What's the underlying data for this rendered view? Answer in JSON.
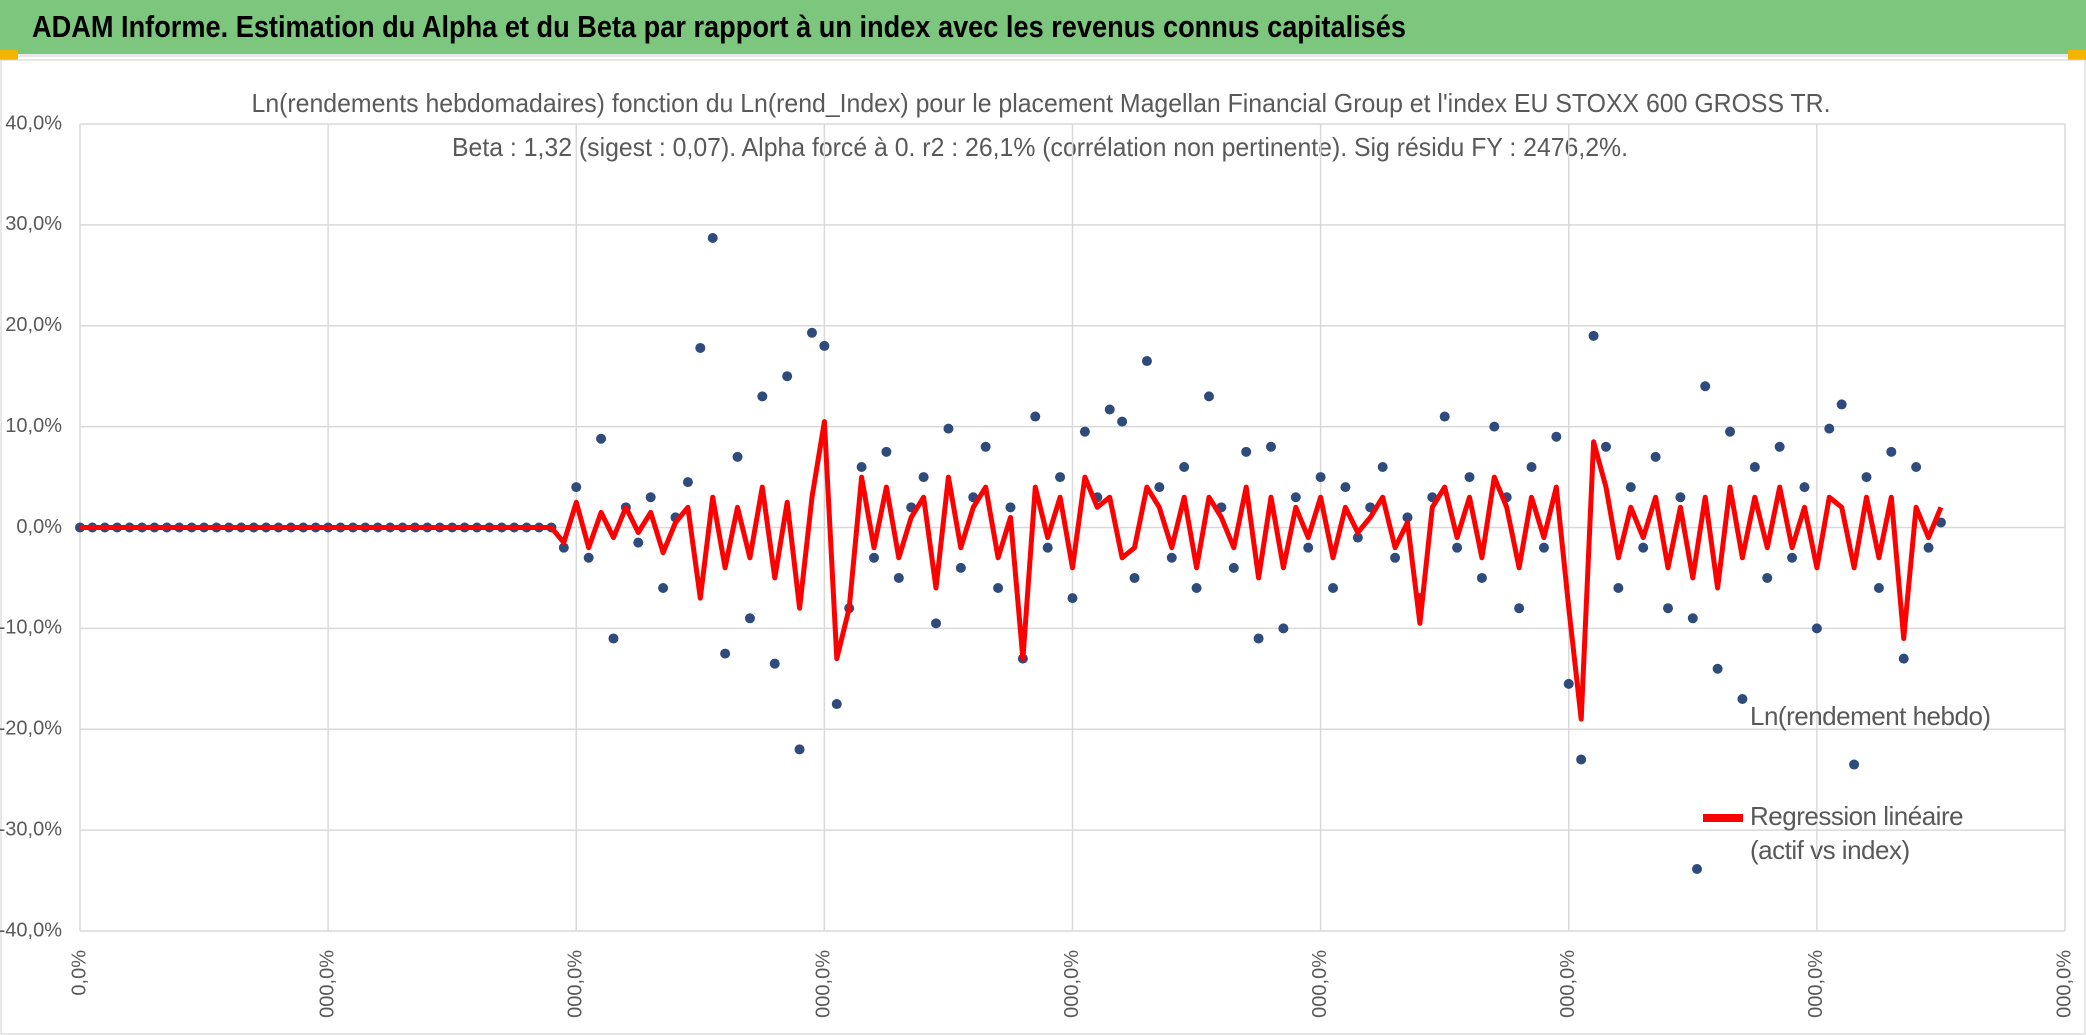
{
  "header": {
    "title": "ADAM Informe. Estimation du Alpha et du Beta par rapport à un index avec les revenus connus capitalisés"
  },
  "chart_data": {
    "type": "scatter",
    "title": "Ln(rendements hebdomadaires) fonction du Ln(rend_Index) pour le placement Magellan Financial Group  et l'index EU STOXX 600 GROSS TR.",
    "subtitle": "Beta : 1,32 (sigest : 0,07). Alpha forcé à 0. r2 : 26,1% (corrélation non pertinente). Sig résidu FY : 2476,2%.",
    "x": [
      0,
      50,
      100,
      150,
      200,
      250,
      300,
      350,
      400,
      450,
      500,
      550,
      600,
      650,
      700,
      750,
      800,
      850,
      900,
      950,
      1000,
      1050,
      1100,
      1150,
      1200,
      1250,
      1300,
      1350,
      1400,
      1450,
      1500,
      1550,
      1600,
      1650,
      1700,
      1750,
      1800,
      1850,
      1900,
      1950,
      2000,
      2050,
      2100,
      2150,
      2200,
      2250,
      2300,
      2350,
      2400,
      2450,
      2500,
      2550,
      2600,
      2650,
      2700,
      2750,
      2800,
      2850,
      2900,
      2950,
      3000,
      3050,
      3100,
      3150,
      3200,
      3250,
      3300,
      3350,
      3400,
      3450,
      3500,
      3550,
      3600,
      3650,
      3700,
      3750,
      3800,
      3850,
      3900,
      3950,
      4000,
      4050,
      4100,
      4150,
      4200,
      4250,
      4300,
      4350,
      4400,
      4450,
      4500,
      4550,
      4600,
      4650,
      4700,
      4750,
      4800,
      4850,
      4900,
      4950,
      5000,
      5050,
      5100,
      5150,
      5200,
      5250,
      5300,
      5350,
      5400,
      5450,
      5500,
      5550,
      5600,
      5650,
      5700,
      5750,
      5800,
      5850,
      5900,
      5950,
      6000,
      6050,
      6100,
      6150,
      6200,
      6250,
      6300,
      6350,
      6400,
      6450,
      6500,
      6550,
      6600,
      6650,
      6700,
      6750,
      6800,
      6850,
      6900,
      6950,
      7000,
      7050,
      7100,
      7150,
      7200,
      7250,
      7300,
      7350,
      7400,
      7450,
      7500
    ],
    "series": [
      {
        "name": "Ln(rendement hebdo)",
        "color": "#2f4b7c",
        "kind": "points",
        "values": [
          0,
          0,
          0,
          0,
          0,
          0,
          0,
          0,
          0,
          0,
          0,
          0,
          0,
          0,
          0,
          0,
          0,
          0,
          0,
          0,
          0,
          0,
          0,
          0,
          0,
          0,
          0,
          0,
          0,
          0,
          0,
          0,
          0,
          0,
          0,
          0,
          0,
          0,
          0,
          -2,
          4,
          -3,
          8.8,
          -11,
          2,
          -1.5,
          3,
          -6,
          1,
          4.5,
          17.8,
          28.7,
          -12.5,
          7,
          -9,
          13,
          -13.5,
          15,
          -22,
          19.3,
          18,
          -17.5,
          -8,
          6,
          -3,
          7.5,
          -5,
          2,
          5,
          -9.5,
          9.8,
          -4,
          3,
          8,
          -6,
          2,
          -13,
          11,
          -2,
          5,
          -7,
          9.5,
          3,
          11.7,
          10.5,
          -5,
          16.5,
          4,
          -3,
          6,
          -6,
          13,
          2,
          -4,
          7.5,
          -11,
          8,
          -10,
          3,
          -2,
          5,
          -6,
          4,
          -1,
          2,
          6,
          -3,
          1,
          -7,
          3,
          11,
          -2,
          5,
          -5,
          10,
          3,
          -8,
          6,
          -2,
          9,
          -15.5,
          -23,
          19,
          8,
          -6,
          4,
          -2,
          7,
          -8,
          3,
          -9,
          14,
          -14,
          9.5,
          -17,
          6,
          -5,
          8,
          -3,
          4,
          -10,
          9.8,
          12.2,
          -23.5,
          5,
          -6,
          7.5,
          -13,
          6,
          -2,
          0.5
        ]
      },
      {
        "name": "Regression linéaire (actif vs index)",
        "color": "#ff0000",
        "kind": "line",
        "values": [
          0,
          0,
          0,
          0,
          0,
          0,
          0,
          0,
          0,
          0,
          0,
          0,
          0,
          0,
          0,
          0,
          0,
          0,
          0,
          0,
          0,
          0,
          0,
          0,
          0,
          0,
          0,
          0,
          0,
          0,
          0,
          0,
          0,
          0,
          0,
          0,
          0,
          0,
          0,
          -1.5,
          2.5,
          -2,
          1.5,
          -1,
          2,
          -0.5,
          1.5,
          -2.5,
          0.5,
          2,
          -7,
          3,
          -4,
          2,
          -3,
          4,
          -5,
          2.5,
          -8,
          3,
          10.5,
          -13,
          -8,
          5,
          -2,
          4,
          -3,
          1,
          3,
          -6,
          5,
          -2,
          2,
          4,
          -3,
          1,
          -13,
          4,
          -1,
          3,
          -4,
          5,
          2,
          3,
          -3,
          -2,
          4,
          2,
          -2,
          3,
          -4,
          3,
          1,
          -2,
          4,
          -5,
          3,
          -4,
          2,
          -1,
          3,
          -3,
          2,
          -0.5,
          1,
          3,
          -2,
          0.5,
          -9.5,
          2,
          4,
          -1,
          3,
          -3,
          5,
          2,
          -4,
          3,
          -1,
          4,
          -8,
          -19,
          8.5,
          4,
          -3,
          2,
          -1,
          3,
          -4,
          2,
          -5,
          3,
          -6,
          4,
          -3,
          3,
          -2,
          4,
          -2,
          2,
          -4,
          3,
          2,
          -4,
          3,
          -3,
          3,
          -11,
          2,
          -1,
          2
        ]
      }
    ],
    "xlim": [
      0,
      8000
    ],
    "xticks": [
      {
        "value": 0,
        "label": "0,0%"
      },
      {
        "value": 1000,
        "label": "000,0%"
      },
      {
        "value": 2000,
        "label": "000,0%"
      },
      {
        "value": 3000,
        "label": "000,0%"
      },
      {
        "value": 4000,
        "label": "000,0%"
      },
      {
        "value": 5000,
        "label": "000,0%"
      },
      {
        "value": 6000,
        "label": "000,0%"
      },
      {
        "value": 7000,
        "label": "000,0%"
      },
      {
        "value": 8000,
        "label": "000,0%"
      }
    ],
    "ylim": [
      -40,
      40
    ],
    "yticks": [
      {
        "value": -40,
        "label": "-40,0%"
      },
      {
        "value": -30,
        "label": "-30,0%"
      },
      {
        "value": -20,
        "label": "-20,0%"
      },
      {
        "value": -10,
        "label": "-10,0%"
      },
      {
        "value": 0,
        "label": "0,0%"
      },
      {
        "value": 10,
        "label": "10,0%"
      },
      {
        "value": 20,
        "label": "20,0%"
      },
      {
        "value": 30,
        "label": "30,0%"
      },
      {
        "value": 40,
        "label": "40,0%"
      }
    ],
    "grid": true
  }
}
